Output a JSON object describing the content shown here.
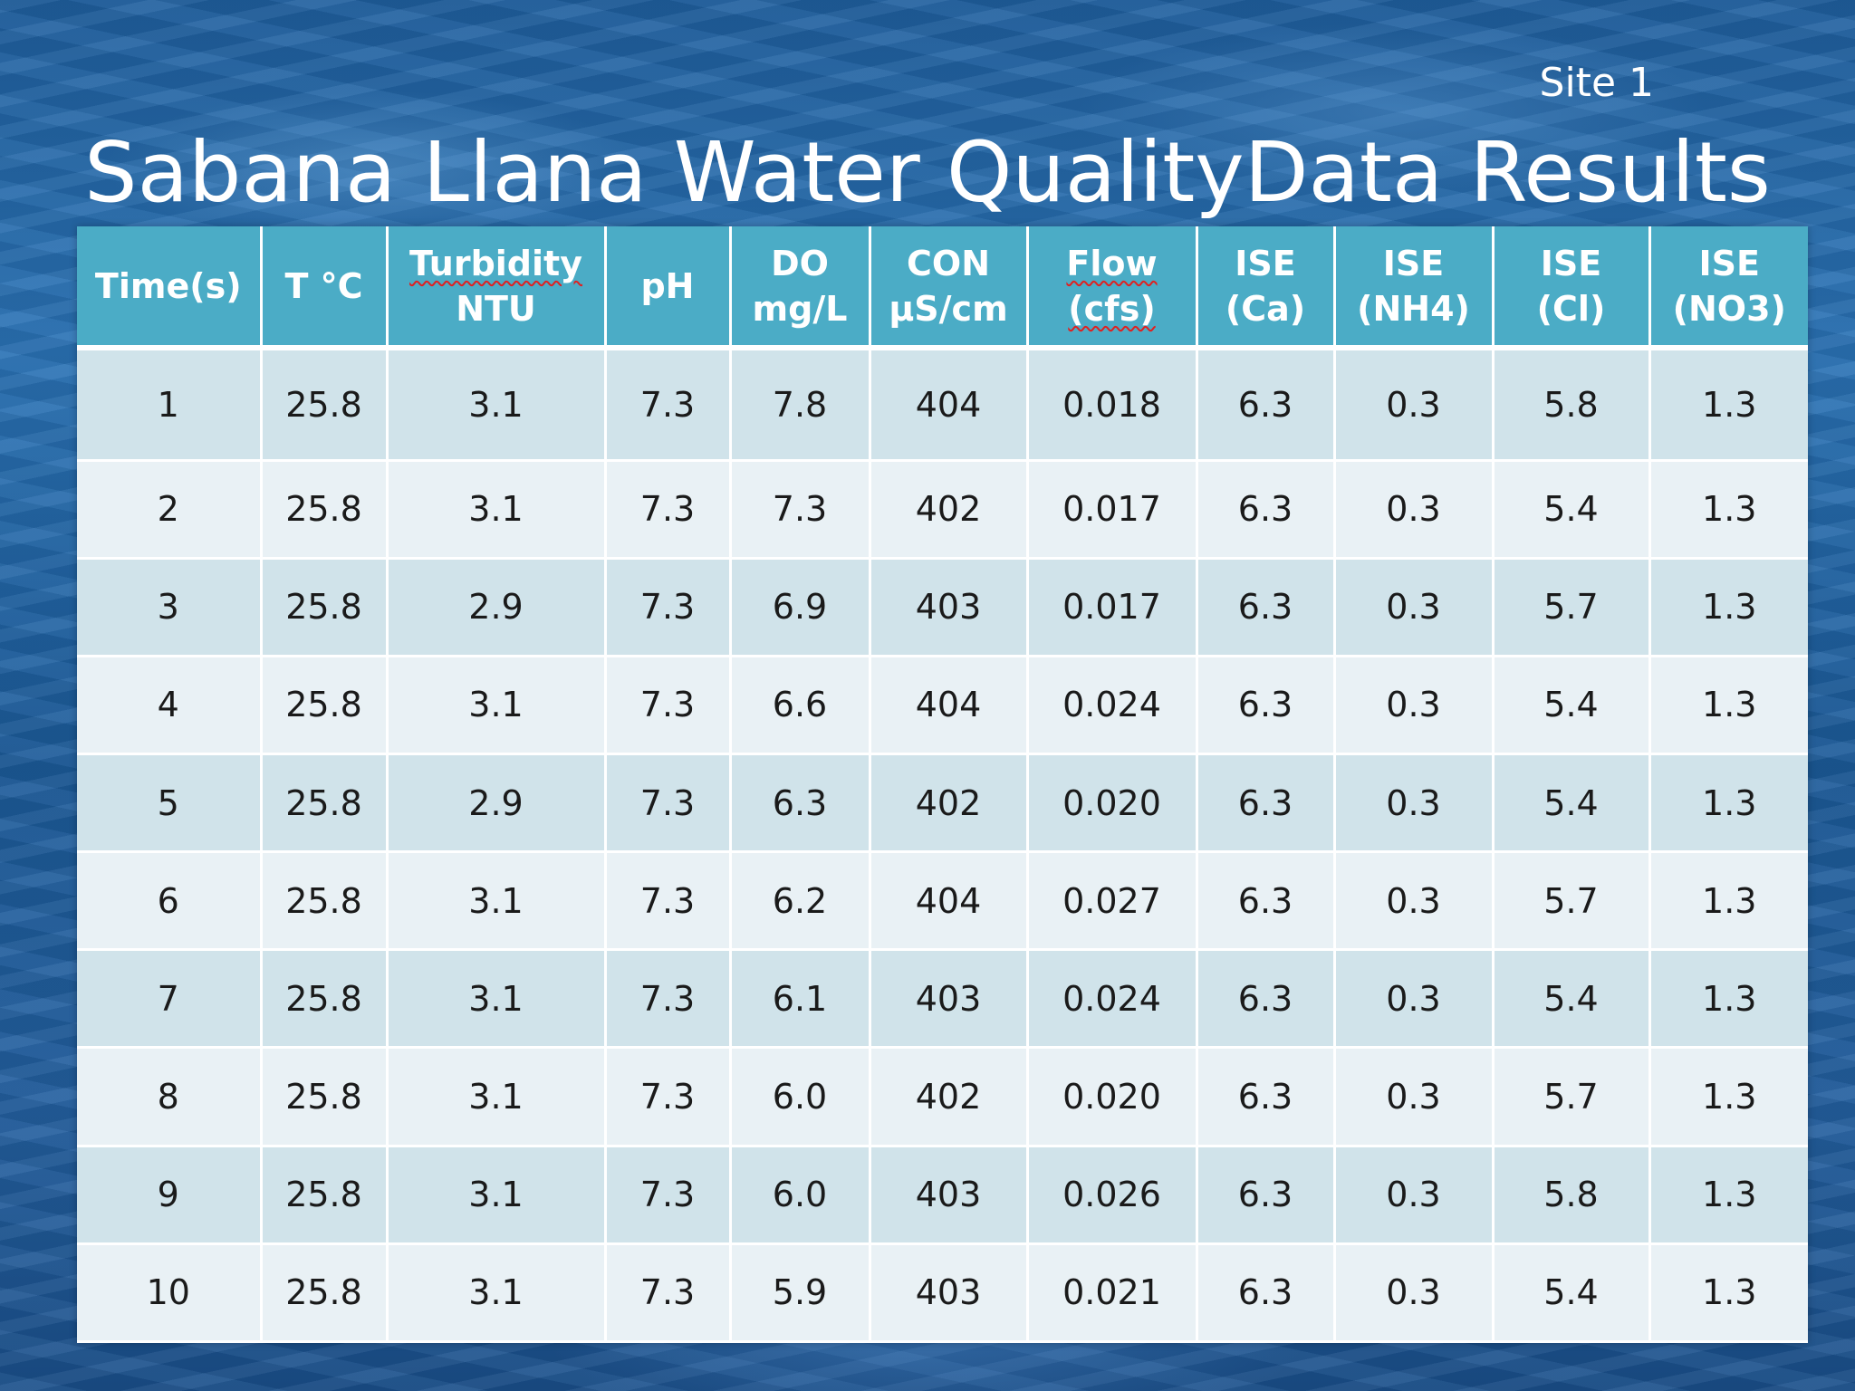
{
  "site_label": "Site 1",
  "title": "Sabana Llana Water QualityData Results",
  "table": {
    "headers": [
      {
        "line1": "Time(s)",
        "line2": ""
      },
      {
        "line1": "T °C",
        "line2": ""
      },
      {
        "line1": "Turbidity",
        "line2": "NTU"
      },
      {
        "line1": "pH",
        "line2": ""
      },
      {
        "line1": "DO",
        "line2": "mg/L"
      },
      {
        "line1": "CON",
        "line2": "µS/cm"
      },
      {
        "line1": "Flow",
        "line2": "(cfs)"
      },
      {
        "line1": "ISE",
        "line2": "(Ca)"
      },
      {
        "line1": "ISE",
        "line2": "(NH4)"
      },
      {
        "line1": "ISE",
        "line2": "(Cl)"
      },
      {
        "line1": "ISE",
        "line2": "(NO3)"
      }
    ],
    "rows": [
      [
        "1",
        "25.8",
        "3.1",
        "7.3",
        "7.8",
        "404",
        "0.018",
        "6.3",
        "0.3",
        "5.8",
        "1.3"
      ],
      [
        "2",
        "25.8",
        "3.1",
        "7.3",
        "7.3",
        "402",
        "0.017",
        "6.3",
        "0.3",
        "5.4",
        "1.3"
      ],
      [
        "3",
        "25.8",
        "2.9",
        "7.3",
        "6.9",
        "403",
        "0.017",
        "6.3",
        "0.3",
        "5.7",
        "1.3"
      ],
      [
        "4",
        "25.8",
        "3.1",
        "7.3",
        "6.6",
        "404",
        "0.024",
        "6.3",
        "0.3",
        "5.4",
        "1.3"
      ],
      [
        "5",
        "25.8",
        "2.9",
        "7.3",
        "6.3",
        "402",
        "0.020",
        "6.3",
        "0.3",
        "5.4",
        "1.3"
      ],
      [
        "6",
        "25.8",
        "3.1",
        "7.3",
        "6.2",
        "404",
        "0.027",
        "6.3",
        "0.3",
        "5.7",
        "1.3"
      ],
      [
        "7",
        "25.8",
        "3.1",
        "7.3",
        "6.1",
        "403",
        "0.024",
        "6.3",
        "0.3",
        "5.4",
        "1.3"
      ],
      [
        "8",
        "25.8",
        "3.1",
        "7.3",
        "6.0",
        "402",
        "0.020",
        "6.3",
        "0.3",
        "5.7",
        "1.3"
      ],
      [
        "9",
        "25.8",
        "3.1",
        "7.3",
        "6.0",
        "403",
        "0.026",
        "6.3",
        "0.3",
        "5.8",
        "1.3"
      ],
      [
        "10",
        "25.8",
        "3.1",
        "7.3",
        "5.9",
        "403",
        "0.021",
        "6.3",
        "0.3",
        "5.4",
        "1.3"
      ]
    ]
  },
  "colors": {
    "header_bg": "#4bacc6",
    "row_odd_bg": "#d0e3ea",
    "row_even_bg": "#e9f1f5",
    "background": "#1f5f9e"
  }
}
